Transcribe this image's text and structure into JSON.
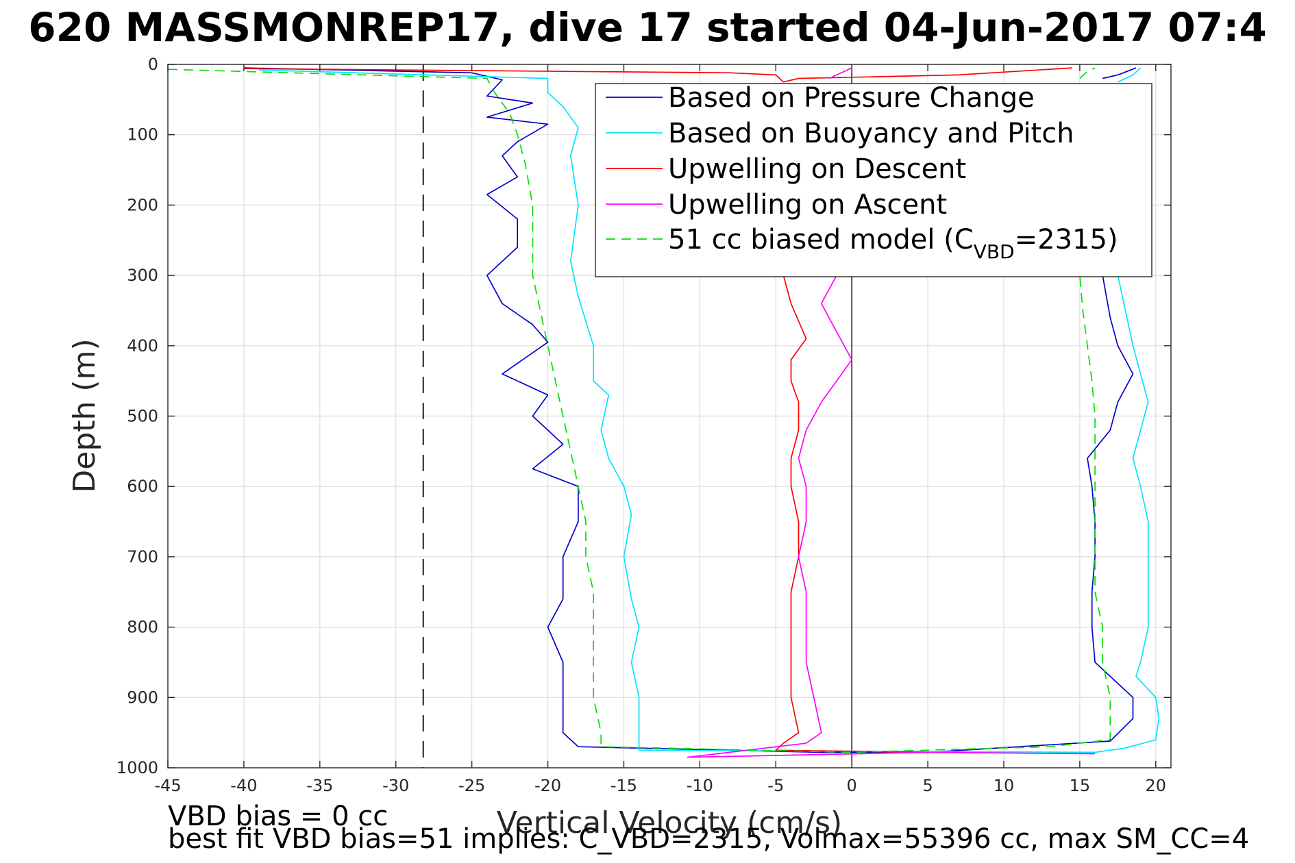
{
  "title": "620 MASSMONREP17, dive 17 started 04-Jun-2017 07:4",
  "footer": {
    "line1": "VBD bias = 0 cc",
    "line2": "best fit VBD bias=51 implies: C_VBD=2315, Volmax=55396 cc, max SM_CC=4"
  },
  "chart_data": {
    "type": "line",
    "xlabel": "Vertical Velocity (cm/s)",
    "ylabel": "Depth (m)",
    "xlim": [
      -45,
      21
    ],
    "ylim": [
      0,
      1000
    ],
    "y_reversed": true,
    "grid": true,
    "x_ticks": [
      -45,
      -40,
      -35,
      -30,
      -25,
      -20,
      -15,
      -10,
      -5,
      0,
      5,
      10,
      15,
      20
    ],
    "y_ticks": [
      0,
      100,
      200,
      300,
      400,
      500,
      600,
      700,
      800,
      900,
      1000
    ],
    "legend_position": "top-right",
    "reference_lines": [
      {
        "x": -28.2,
        "style": "dashed",
        "color": "#000000"
      },
      {
        "x": 0,
        "style": "solid",
        "color": "#000000"
      }
    ],
    "series": [
      {
        "name": "Based on Pressure Change",
        "color": "#0000cd",
        "dash": "solid",
        "segments": [
          [
            [
              -40,
              5
            ],
            [
              -25,
              12
            ],
            [
              -23,
              22
            ],
            [
              -24,
              45
            ],
            [
              -21,
              55
            ],
            [
              -24,
              75
            ],
            [
              -20,
              85
            ],
            [
              -22,
              110
            ],
            [
              -23,
              130
            ],
            [
              -22,
              160
            ],
            [
              -24,
              185
            ],
            [
              -22,
              220
            ],
            [
              -22,
              260
            ],
            [
              -24,
              300
            ],
            [
              -23,
              340
            ],
            [
              -21,
              370
            ],
            [
              -20,
              395
            ],
            [
              -23,
              440
            ],
            [
              -20,
              470
            ],
            [
              -21,
              500
            ],
            [
              -19,
              540
            ],
            [
              -21,
              575
            ],
            [
              -18,
              600
            ],
            [
              -18,
              650
            ],
            [
              -19,
              700
            ],
            [
              -19,
              760
            ],
            [
              -20,
              800
            ],
            [
              -19,
              850
            ],
            [
              -19,
              900
            ],
            [
              -19,
              950
            ],
            [
              -18,
              970
            ],
            [
              -2,
              978
            ],
            [
              5,
              978
            ],
            [
              17,
              962
            ],
            [
              18.5,
              930
            ],
            [
              18.5,
              900
            ],
            [
              17,
              870
            ],
            [
              16,
              850
            ],
            [
              15.8,
              800
            ],
            [
              15.8,
              750
            ],
            [
              16,
              700
            ],
            [
              16,
              650
            ],
            [
              15.8,
              600
            ],
            [
              15.5,
              560
            ],
            [
              17,
              520
            ],
            [
              17.5,
              480
            ],
            [
              18.5,
              440
            ],
            [
              17.5,
              400
            ],
            [
              17,
              360
            ],
            [
              16.5,
              300
            ]
          ],
          [
            [
              16.5,
              20
            ],
            [
              17.5,
              15
            ],
            [
              18.7,
              5
            ]
          ]
        ]
      },
      {
        "name": "Based on Buoyancy and Pitch",
        "color": "#00e5ff",
        "dash": "solid",
        "segments": [
          [
            [
              -39,
              8
            ],
            [
              -20,
              20
            ],
            [
              -20,
              40
            ],
            [
              -19,
              60
            ],
            [
              -18,
              90
            ],
            [
              -18.5,
              130
            ],
            [
              -18,
              200
            ],
            [
              -18.5,
              280
            ],
            [
              -18,
              330
            ],
            [
              -17,
              400
            ],
            [
              -17,
              450
            ],
            [
              -16,
              470
            ],
            [
              -16.5,
              520
            ],
            [
              -16,
              560
            ],
            [
              -15,
              600
            ],
            [
              -14.5,
              640
            ],
            [
              -15,
              700
            ],
            [
              -14.5,
              760
            ],
            [
              -14,
              800
            ],
            [
              -14.5,
              850
            ],
            [
              -14,
              900
            ],
            [
              -14,
              960
            ],
            [
              -14,
              975
            ],
            [
              16,
              978
            ],
            [
              18,
              972
            ],
            [
              20,
              960
            ],
            [
              20.2,
              930
            ],
            [
              20,
              900
            ],
            [
              18.7,
              870
            ],
            [
              19,
              850
            ],
            [
              19.5,
              800
            ],
            [
              19.5,
              750
            ],
            [
              19.5,
              700
            ],
            [
              19.5,
              650
            ],
            [
              19,
              600
            ],
            [
              18.5,
              560
            ],
            [
              19,
              520
            ],
            [
              19.5,
              480
            ],
            [
              19,
              440
            ],
            [
              18.5,
              400
            ],
            [
              18,
              350
            ],
            [
              17.5,
              300
            ]
          ],
          [
            [
              17.5,
              25
            ],
            [
              18.5,
              15
            ],
            [
              19,
              5
            ]
          ]
        ]
      },
      {
        "name": "Upwelling on Descent",
        "color": "#ff0000",
        "dash": "solid",
        "segments": [
          [
            [
              -40,
              6
            ],
            [
              -8,
              12
            ],
            [
              -5,
              15
            ],
            [
              -4.5,
              25
            ],
            [
              -3.5,
              20
            ]
          ],
          [
            [
              -4.5,
              300
            ],
            [
              -4,
              340
            ],
            [
              -3,
              390
            ],
            [
              -4,
              420
            ],
            [
              -4,
              450
            ],
            [
              -3.5,
              480
            ],
            [
              -3.5,
              520
            ],
            [
              -4,
              560
            ],
            [
              -4,
              600
            ],
            [
              -3.5,
              650
            ],
            [
              -3.5,
              700
            ],
            [
              -4,
              750
            ],
            [
              -4,
              800
            ],
            [
              -4,
              850
            ],
            [
              -4,
              900
            ],
            [
              -3.5,
              950
            ],
            [
              -4.5,
              965
            ],
            [
              -5,
              975
            ],
            [
              5,
              978
            ]
          ],
          [
            [
              -3.5,
              20
            ],
            [
              7,
              15
            ],
            [
              14.5,
              5
            ]
          ]
        ]
      },
      {
        "name": "Upwelling on Ascent",
        "color": "#ff00ff",
        "dash": "solid",
        "segments": [
          [
            [
              -1,
              300
            ],
            [
              -2,
              340
            ],
            [
              -1,
              380
            ],
            [
              0,
              420
            ],
            [
              -1,
              450
            ],
            [
              -2,
              480
            ],
            [
              -3,
              520
            ],
            [
              -3.5,
              560
            ],
            [
              -3,
              600
            ],
            [
              -3,
              650
            ],
            [
              -3.5,
              700
            ],
            [
              -3,
              750
            ],
            [
              -3,
              800
            ],
            [
              -3,
              850
            ],
            [
              -2.5,
              900
            ],
            [
              -2,
              950
            ],
            [
              -3,
              965
            ],
            [
              -10.8,
              985
            ],
            [
              5,
              978
            ],
            [
              16,
              980
            ]
          ],
          [
            [
              -1.5,
              20
            ],
            [
              -0.5,
              10
            ],
            [
              0,
              5
            ]
          ]
        ]
      },
      {
        "name": "51 cc biased model (C_VBD=2315)",
        "color": "#00e000",
        "dash": "dashed",
        "segments": [
          [
            [
              -45,
              7
            ],
            [
              -24,
              20
            ],
            [
              -23.5,
              40
            ],
            [
              -22.5,
              70
            ],
            [
              -22,
              100
            ],
            [
              -21.5,
              140
            ],
            [
              -21,
              200
            ],
            [
              -21,
              260
            ],
            [
              -21,
              300
            ],
            [
              -20.5,
              350
            ],
            [
              -20,
              400
            ],
            [
              -19.5,
              450
            ],
            [
              -19,
              500
            ],
            [
              -18.5,
              550
            ],
            [
              -18,
              600
            ],
            [
              -17.5,
              650
            ],
            [
              -17.5,
              700
            ],
            [
              -17,
              750
            ],
            [
              -17,
              800
            ],
            [
              -17,
              850
            ],
            [
              -17,
              900
            ],
            [
              -16.5,
              950
            ],
            [
              -16.5,
              970
            ],
            [
              0,
              978
            ],
            [
              13,
              970
            ],
            [
              17,
              960
            ],
            [
              17,
              900
            ],
            [
              16.5,
              850
            ],
            [
              16.5,
              800
            ],
            [
              16,
              750
            ],
            [
              16,
              700
            ],
            [
              16,
              650
            ],
            [
              16,
              600
            ],
            [
              16,
              550
            ],
            [
              16,
              500
            ],
            [
              15.8,
              450
            ],
            [
              15.5,
              400
            ],
            [
              15.2,
              350
            ],
            [
              15,
              300
            ]
          ],
          [
            [
              15,
              20
            ],
            [
              15.5,
              10
            ],
            [
              16,
              5
            ]
          ]
        ]
      }
    ]
  }
}
